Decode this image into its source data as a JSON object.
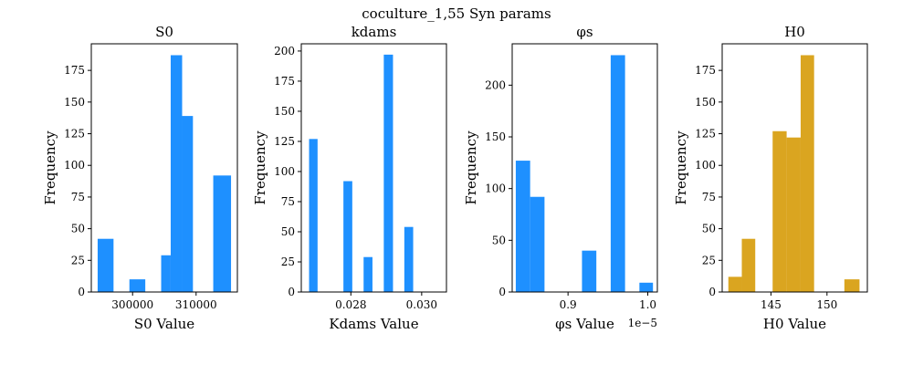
{
  "figure": {
    "title": "coculture_1,55 Syn params"
  },
  "chart_data": [
    {
      "type": "bar",
      "title": "S0",
      "xlabel": "S0 Value",
      "ylabel": "Frequency",
      "color": "#1e90ff",
      "xlim": [
        293500,
        316500
      ],
      "ylim": [
        0,
        196
      ],
      "xticks": [
        300000,
        310000
      ],
      "yticks": [
        0,
        25,
        50,
        75,
        100,
        125,
        150,
        175
      ],
      "offset_text": "",
      "bins": [
        {
          "x0": 294500,
          "x1": 297000,
          "count": 42
        },
        {
          "x0": 297000,
          "x1": 299500,
          "count": 0
        },
        {
          "x0": 299500,
          "x1": 302000,
          "count": 10
        },
        {
          "x0": 302000,
          "x1": 304500,
          "count": 0
        },
        {
          "x0": 304500,
          "x1": 306000,
          "count": 29
        },
        {
          "x0": 306000,
          "x1": 307800,
          "count": 187
        },
        {
          "x0": 307800,
          "x1": 309500,
          "count": 139
        },
        {
          "x0": 309500,
          "x1": 312700,
          "count": 0
        },
        {
          "x0": 312700,
          "x1": 315500,
          "count": 92
        }
      ]
    },
    {
      "type": "bar",
      "title": "kdams",
      "xlabel": "Kdams Value",
      "ylabel": "Frequency",
      "color": "#1e90ff",
      "xlim": [
        0.0266,
        0.0307
      ],
      "ylim": [
        0,
        206
      ],
      "xticks": [
        0.028,
        0.03
      ],
      "yticks": [
        0,
        25,
        50,
        75,
        100,
        125,
        150,
        175,
        200
      ],
      "offset_text": "",
      "bins": [
        {
          "x0": 0.02682,
          "x1": 0.02706,
          "count": 127
        },
        {
          "x0": 0.02706,
          "x1": 0.02779,
          "count": 0
        },
        {
          "x0": 0.02779,
          "x1": 0.02804,
          "count": 92
        },
        {
          "x0": 0.02804,
          "x1": 0.02836,
          "count": 0
        },
        {
          "x0": 0.02836,
          "x1": 0.02861,
          "count": 29
        },
        {
          "x0": 0.02861,
          "x1": 0.02893,
          "count": 0
        },
        {
          "x0": 0.02893,
          "x1": 0.02919,
          "count": 197
        },
        {
          "x0": 0.02919,
          "x1": 0.02951,
          "count": 0
        },
        {
          "x0": 0.02951,
          "x1": 0.02976,
          "count": 54
        }
      ]
    },
    {
      "type": "bar",
      "title": "φs",
      "xlabel": "φs Value",
      "ylabel": "Frequency",
      "color": "#1e90ff",
      "xlim": [
        0.83,
        1.012
      ],
      "ylim": [
        0,
        240
      ],
      "xticks": [
        0.9,
        1.0
      ],
      "yticks": [
        0,
        50,
        100,
        150,
        200
      ],
      "offset_text": "1e−5",
      "bins": [
        {
          "x0": 0.8345,
          "x1": 0.8525,
          "count": 127
        },
        {
          "x0": 0.8525,
          "x1": 0.8705,
          "count": 92
        },
        {
          "x0": 0.8705,
          "x1": 0.9175,
          "count": 0
        },
        {
          "x0": 0.9175,
          "x1": 0.9355,
          "count": 40
        },
        {
          "x0": 0.9355,
          "x1": 0.9535,
          "count": 0
        },
        {
          "x0": 0.9535,
          "x1": 0.9715,
          "count": 229
        },
        {
          "x0": 0.9715,
          "x1": 0.9895,
          "count": 0
        },
        {
          "x0": 0.9895,
          "x1": 1.0065,
          "count": 9
        }
      ]
    },
    {
      "type": "bar",
      "title": "H0",
      "xlabel": "H0 Value",
      "ylabel": "Frequency",
      "color": "#daa520",
      "xlim": [
        140.65,
        153.6
      ],
      "ylim": [
        0,
        196
      ],
      "xticks": [
        145,
        150
      ],
      "yticks": [
        0,
        25,
        50,
        75,
        100,
        125,
        150,
        175
      ],
      "offset_text": "",
      "bins": [
        {
          "x0": 141.2,
          "x1": 142.4,
          "count": 12
        },
        {
          "x0": 142.4,
          "x1": 143.6,
          "count": 42
        },
        {
          "x0": 143.6,
          "x1": 145.15,
          "count": 0
        },
        {
          "x0": 145.15,
          "x1": 146.4,
          "count": 127
        },
        {
          "x0": 146.4,
          "x1": 147.65,
          "count": 122
        },
        {
          "x0": 147.65,
          "x1": 148.85,
          "count": 187
        },
        {
          "x0": 148.85,
          "x1": 151.55,
          "count": 0
        },
        {
          "x0": 151.55,
          "x1": 152.9,
          "count": 10
        }
      ]
    }
  ]
}
